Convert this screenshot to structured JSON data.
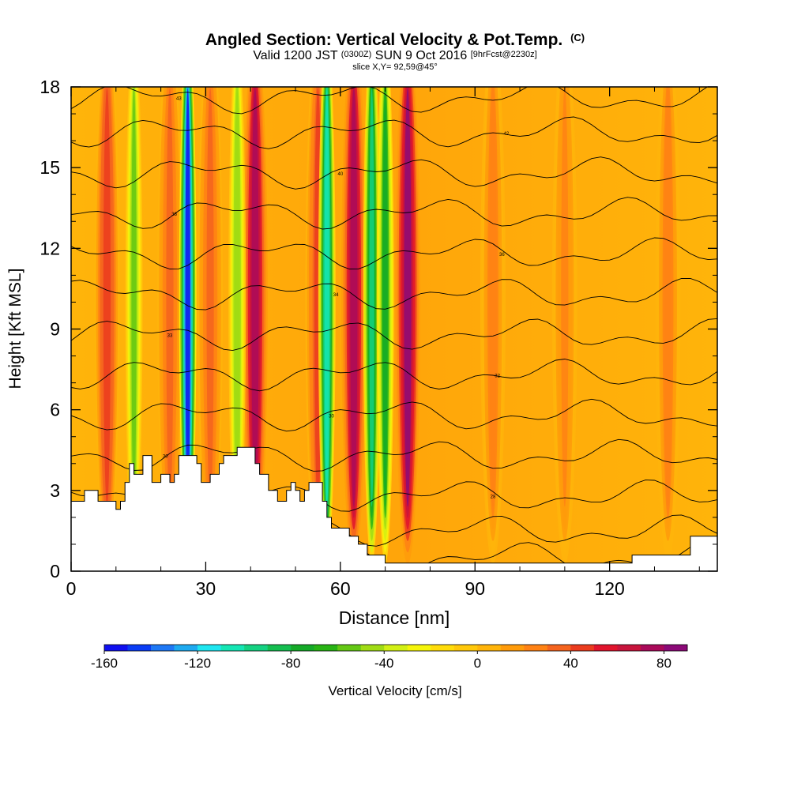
{
  "header": {
    "title": "Angled Section: Vertical Velocity & Pot.Temp.",
    "title_unit": "(C)",
    "valid_prefix": "Valid 1200 JST",
    "valid_utc": "(0300Z)",
    "valid_date": "SUN 9 Oct 2016",
    "forecast": "[9hrFcst@2230z]",
    "slice": "slice X,Y= 92,59@45°"
  },
  "chart_data": {
    "type": "heatmap",
    "title": "Angled Section: Vertical Velocity & Pot.Temp. (C)",
    "xlabel": "Distance [nm]",
    "ylabel": "Height [Kft MSL]",
    "xlim": [
      0,
      144
    ],
    "ylim": [
      0,
      18
    ],
    "x_ticks": [
      0,
      30,
      60,
      90,
      120
    ],
    "y_ticks": [
      0,
      3,
      6,
      9,
      12,
      15,
      18
    ],
    "colorbar": {
      "label": "Vertical Velocity [cm/s]",
      "min": -160,
      "max": 90,
      "step": 10,
      "tick_values": [
        -160,
        -120,
        -80,
        -40,
        0,
        40,
        80
      ],
      "colors": [
        "#1010f0",
        "#0a3cf5",
        "#1e78f5",
        "#1eaaf0",
        "#1ee6f0",
        "#14e6b4",
        "#14d282",
        "#14be50",
        "#14aa28",
        "#28b414",
        "#64c814",
        "#a0dc14",
        "#d2f014",
        "#f5f50a",
        "#ffdc0a",
        "#ffc80a",
        "#ffb40a",
        "#ff9b0a",
        "#ff8214",
        "#f5641e",
        "#eb3c1e",
        "#e1142d",
        "#c8143c",
        "#aa0a5a",
        "#8c0a78"
      ]
    },
    "updrafts": [
      {
        "x": 8,
        "peak": 45
      },
      {
        "x": 22,
        "peak": 35
      },
      {
        "x": 31,
        "peak": 30
      },
      {
        "x": 41,
        "peak": 75
      },
      {
        "x": 55,
        "peak": 40
      },
      {
        "x": 63,
        "peak": 75
      },
      {
        "x": 75,
        "peak": 80
      },
      {
        "x": 94,
        "peak": 25
      },
      {
        "x": 110,
        "peak": 20
      },
      {
        "x": 133,
        "peak": 25
      }
    ],
    "downdrafts": [
      {
        "x": 14,
        "low": -55
      },
      {
        "x": 26,
        "low": -155
      },
      {
        "x": 37,
        "low": -50
      },
      {
        "x": 57,
        "low": -110
      },
      {
        "x": 67,
        "low": -95
      },
      {
        "x": 70,
        "low": -75
      }
    ],
    "terrain_kft": [
      [
        0,
        2.6
      ],
      [
        3,
        2.6
      ],
      [
        3,
        3.0
      ],
      [
        6,
        3.0
      ],
      [
        6,
        2.6
      ],
      [
        10,
        2.6
      ],
      [
        10,
        2.3
      ],
      [
        11,
        2.3
      ],
      [
        11,
        2.6
      ],
      [
        12,
        2.6
      ],
      [
        12,
        3.3
      ],
      [
        13,
        3.3
      ],
      [
        13,
        4.0
      ],
      [
        14,
        4.0
      ],
      [
        14,
        3.6
      ],
      [
        16,
        3.6
      ],
      [
        16,
        4.3
      ],
      [
        18,
        4.3
      ],
      [
        18,
        3.3
      ],
      [
        20,
        3.3
      ],
      [
        20,
        3.6
      ],
      [
        22,
        3.6
      ],
      [
        22,
        3.3
      ],
      [
        23,
        3.3
      ],
      [
        23,
        3.6
      ],
      [
        24,
        3.6
      ],
      [
        24,
        4.3
      ],
      [
        28,
        4.3
      ],
      [
        28,
        4.0
      ],
      [
        29,
        4.0
      ],
      [
        29,
        3.3
      ],
      [
        31,
        3.3
      ],
      [
        31,
        3.6
      ],
      [
        33,
        3.6
      ],
      [
        33,
        4.0
      ],
      [
        34,
        4.0
      ],
      [
        34,
        4.3
      ],
      [
        37,
        4.3
      ],
      [
        37,
        4.6
      ],
      [
        41,
        4.6
      ],
      [
        41,
        4.0
      ],
      [
        42,
        4.0
      ],
      [
        42,
        3.6
      ],
      [
        44,
        3.6
      ],
      [
        44,
        3.0
      ],
      [
        46,
        3.0
      ],
      [
        46,
        2.6
      ],
      [
        48,
        2.6
      ],
      [
        48,
        3.0
      ],
      [
        49,
        3.0
      ],
      [
        49,
        3.3
      ],
      [
        50,
        3.3
      ],
      [
        50,
        3.0
      ],
      [
        51,
        3.0
      ],
      [
        51,
        2.6
      ],
      [
        52,
        2.6
      ],
      [
        52,
        3.0
      ],
      [
        53,
        3.0
      ],
      [
        53,
        3.3
      ],
      [
        56,
        3.3
      ],
      [
        56,
        2.6
      ],
      [
        57,
        2.6
      ],
      [
        57,
        2.0
      ],
      [
        58,
        2.0
      ],
      [
        58,
        1.6
      ],
      [
        62,
        1.6
      ],
      [
        62,
        1.3
      ],
      [
        64,
        1.3
      ],
      [
        64,
        1.0
      ],
      [
        66,
        1.0
      ],
      [
        66,
        0.6
      ],
      [
        70,
        0.6
      ],
      [
        70,
        0.3
      ],
      [
        125,
        0.3
      ],
      [
        125,
        0.6
      ],
      [
        138,
        0.6
      ],
      [
        138,
        1.3
      ],
      [
        144,
        1.3
      ],
      [
        144,
        0
      ],
      [
        0,
        0
      ]
    ],
    "theta_levels": [
      {
        "h": 0.5,
        "label": "29"
      },
      {
        "h": 1.5,
        "label": "28"
      },
      {
        "h": 2.8,
        "label": "28"
      },
      {
        "h": 4.3,
        "label": "30"
      },
      {
        "h": 5.8,
        "label": "30"
      },
      {
        "h": 7.3,
        "label": "32"
      },
      {
        "h": 8.8,
        "label": "33"
      },
      {
        "h": 10.3,
        "label": "34"
      },
      {
        "h": 11.8,
        "label": "36"
      },
      {
        "h": 13.3,
        "label": "38"
      },
      {
        "h": 14.8,
        "label": "40"
      },
      {
        "h": 16.3,
        "label": "42"
      },
      {
        "h": 17.6,
        "label": "43"
      }
    ]
  }
}
